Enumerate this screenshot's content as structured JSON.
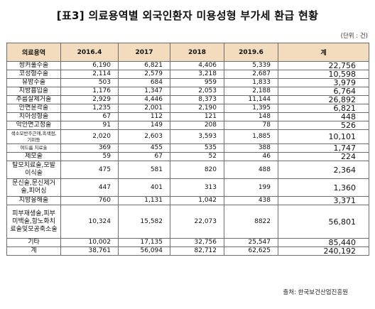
{
  "title": "[표3] 의료용역별 외국인환자 미용성형 부가세 환급 현황",
  "unit": "(단위 : 건)",
  "source": "출처: 한국보건산업진흥원",
  "table": {
    "headers": [
      "의료용역",
      "2016.4",
      "2017",
      "2018",
      "2019.6",
      "계"
    ],
    "rows": [
      {
        "cat": "쌍커풀수술",
        "v": [
          "6,190",
          "6,821",
          "4,406",
          "5,339"
        ],
        "total": "22,756"
      },
      {
        "cat": "코성형수술",
        "v": [
          "2,114",
          "2,579",
          "3,218",
          "2,687"
        ],
        "total": "10,598"
      },
      {
        "cat": "유방수술",
        "v": [
          "503",
          "684",
          "959",
          "1,833"
        ],
        "total": "3,979"
      },
      {
        "cat": "지방흡입술",
        "v": [
          "1,176",
          "1,347",
          "2,053",
          "2,188"
        ],
        "total": "6,764"
      },
      {
        "cat": "주름살제거술",
        "v": [
          "2,929",
          "4,446",
          "8,373",
          "11,144"
        ],
        "total": "26,892"
      },
      {
        "cat": "안면윤곽술",
        "v": [
          "1,235",
          "2,001",
          "2,190",
          "1,395"
        ],
        "total": "6,821"
      },
      {
        "cat": "치아성형술",
        "v": [
          "67",
          "112",
          "121",
          "148"
        ],
        "total": "448"
      },
      {
        "cat": "악안면고정술",
        "v": [
          "91",
          "149",
          "208",
          "78"
        ],
        "total": "526"
      },
      {
        "cat": "색소모반주근깨,흑색점,기미등",
        "v": [
          "2,020",
          "2,603",
          "3,593",
          "1,885"
        ],
        "total": "10,101"
      },
      {
        "cat": "여드름 치료술",
        "v": [
          "369",
          "455",
          "535",
          "388"
        ],
        "total": "1,747"
      },
      {
        "cat": "제모술",
        "v": [
          "59",
          "67",
          "52",
          "46"
        ],
        "total": "224"
      },
      {
        "cat": "탈모치료술,모발이식술",
        "v": [
          "475",
          "581",
          "820",
          "488"
        ],
        "total": "2,364"
      },
      {
        "cat": "문신술,문신제거술,피어싱",
        "v": [
          "447",
          "401",
          "313",
          "199"
        ],
        "total": "1,360"
      },
      {
        "cat": "지방융해술",
        "v": [
          "760",
          "1,131",
          "1,042",
          "438"
        ],
        "total": "3,371"
      },
      {
        "cat": "피부재생술,피부미백술,항노화치료술및모공축소술",
        "v": [
          "10,324",
          "15,582",
          "22,073",
          "8822"
        ],
        "total": "56,801"
      },
      {
        "cat": "기타",
        "v": [
          "10,002",
          "17,135",
          "32,756",
          "25,547"
        ],
        "total": "85,440"
      },
      {
        "cat": "계",
        "v": [
          "38,761",
          "56,094",
          "82,712",
          "62,625"
        ],
        "total": "240,192"
      }
    ]
  }
}
